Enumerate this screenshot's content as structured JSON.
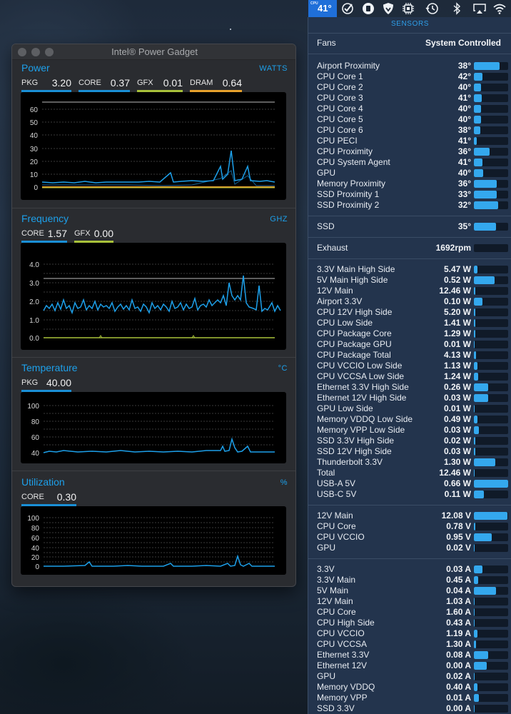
{
  "menubar": {
    "temp_status": "41°",
    "temp_status_small": "CPU",
    "icons": [
      "checkmark-circle-icon",
      "stop-circle-icon",
      "shield-icon",
      "cpu-chip-icon",
      "time-machine-icon",
      "bluetooth-icon",
      "airplay-icon",
      "wifi-icon"
    ]
  },
  "gadget": {
    "title": "Intel® Power Gadget",
    "power": {
      "title": "Power",
      "unit": "WATTS",
      "metrics": [
        {
          "label": "PKG",
          "value": "3.20",
          "color": "#1a8fd6"
        },
        {
          "label": "CORE",
          "value": "0.37",
          "color": "#1a8fd6"
        },
        {
          "label": "GFX",
          "value": "0.01",
          "color": "#a8c13a"
        },
        {
          "label": "DRAM",
          "value": "0.64",
          "color": "#e7a12c"
        }
      ],
      "yticks": [
        "60",
        "50",
        "40",
        "30",
        "20",
        "10",
        "0"
      ]
    },
    "frequency": {
      "title": "Frequency",
      "unit": "GHZ",
      "metrics": [
        {
          "label": "CORE",
          "value": "1.57",
          "color": "#1a8fd6"
        },
        {
          "label": "GFX",
          "value": "0.00",
          "color": "#a8c13a"
        }
      ],
      "yticks": [
        "4.0",
        "3.0",
        "2.0",
        "1.0",
        "0.0"
      ]
    },
    "temperature": {
      "title": "Temperature",
      "unit": "°C",
      "metrics": [
        {
          "label": "PKG",
          "value": "40.00",
          "color": "#1a8fd6"
        }
      ],
      "yticks": [
        "100",
        "80",
        "60",
        "40"
      ]
    },
    "utilization": {
      "title": "Utilization",
      "unit": "%",
      "metrics": [
        {
          "label": "CORE",
          "value": "0.30",
          "color": "#1a8fd6"
        }
      ],
      "yticks": [
        "100",
        "80",
        "60",
        "40",
        "20",
        "0"
      ]
    }
  },
  "sensors": {
    "header": "SENSORS",
    "fans": {
      "label": "Fans",
      "value": "System Controlled"
    },
    "groups": [
      {
        "rows": [
          {
            "name": "Airport Proximity",
            "value": "38°",
            "fill": 0.75
          },
          {
            "name": "CPU Core 1",
            "value": "42°",
            "fill": 0.25
          },
          {
            "name": "CPU Core 2",
            "value": "40°",
            "fill": 0.2
          },
          {
            "name": "CPU Core 3",
            "value": "41°",
            "fill": 0.22
          },
          {
            "name": "CPU Core 4",
            "value": "40°",
            "fill": 0.2
          },
          {
            "name": "CPU Core 5",
            "value": "40°",
            "fill": 0.2
          },
          {
            "name": "CPU Core 6",
            "value": "38°",
            "fill": 0.18
          },
          {
            "name": "CPU PECI",
            "value": "41°",
            "fill": 0.08
          },
          {
            "name": "CPU Proximity",
            "value": "36°",
            "fill": 0.46
          },
          {
            "name": "CPU System Agent",
            "value": "41°",
            "fill": 0.25
          },
          {
            "name": "GPU",
            "value": "40°",
            "fill": 0.28
          },
          {
            "name": "Memory Proximity",
            "value": "36°",
            "fill": 0.67
          },
          {
            "name": "SSD Proximity 1",
            "value": "33°",
            "fill": 0.67
          },
          {
            "name": "SSD Proximity 2",
            "value": "32°",
            "fill": 0.7
          }
        ]
      },
      {
        "rows": [
          {
            "name": "SSD",
            "value": "35°",
            "fill": 0.64
          }
        ]
      },
      {
        "rows": [
          {
            "name": "Exhaust",
            "value": "1692rpm",
            "fill": 0
          }
        ]
      },
      {
        "rows": [
          {
            "name": "3.3V Main High Side",
            "value": "5.47 W",
            "fill": 0.1
          },
          {
            "name": "5V Main High Side",
            "value": "0.52 W",
            "fill": 0.6
          },
          {
            "name": "12V Main",
            "value": "12.46 W",
            "fill": 0.04
          },
          {
            "name": "Airport 3.3V",
            "value": "0.10 W",
            "fill": 0.25
          },
          {
            "name": "CPU 12V High Side",
            "value": "5.20 W",
            "fill": 0.04
          },
          {
            "name": "CPU Low Side",
            "value": "1.41 W",
            "fill": 0.04
          },
          {
            "name": "CPU Package Core",
            "value": "1.29 W",
            "fill": 0.04
          },
          {
            "name": "CPU Package GPU",
            "value": "0.01 W",
            "fill": 0.02
          },
          {
            "name": "CPU Package Total",
            "value": "4.13 W",
            "fill": 0.06
          },
          {
            "name": "CPU VCCIO Low Side",
            "value": "1.13 W",
            "fill": 0.1
          },
          {
            "name": "CPU VCCSA Low Side",
            "value": "1.24 W",
            "fill": 0.12
          },
          {
            "name": "Ethernet 3.3V High Side",
            "value": "0.26 W",
            "fill": 0.42
          },
          {
            "name": "Ethernet 12V High Side",
            "value": "0.03 W",
            "fill": 0.42
          },
          {
            "name": "GPU Low Side",
            "value": "0.01 W",
            "fill": 0.02
          },
          {
            "name": "Memory VDDQ Low Side",
            "value": "0.49 W",
            "fill": 0.1
          },
          {
            "name": "Memory VPP Low Side",
            "value": "0.03 W",
            "fill": 0.14
          },
          {
            "name": "SSD 3.3V High Side",
            "value": "0.02 W",
            "fill": 0.04
          },
          {
            "name": "SSD 12V High Side",
            "value": "0.03 W",
            "fill": 0.04
          },
          {
            "name": "Thunderbolt 3.3V",
            "value": "1.30 W",
            "fill": 0.62
          },
          {
            "name": "Total",
            "value": "12.46 W",
            "fill": 0.02
          },
          {
            "name": "USB-A 5V",
            "value": "0.66 W",
            "fill": 1.0
          },
          {
            "name": "USB-C 5V",
            "value": "0.11 W",
            "fill": 0.3
          }
        ]
      },
      {
        "rows": [
          {
            "name": "12V Main",
            "value": "12.08 V",
            "fill": 0.97
          },
          {
            "name": "CPU Core",
            "value": "0.78 V",
            "fill": 0.04
          },
          {
            "name": "CPU VCCIO",
            "value": "0.95 V",
            "fill": 0.52
          },
          {
            "name": "GPU",
            "value": "0.02 V",
            "fill": 0.02
          }
        ]
      },
      {
        "rows": [
          {
            "name": "3.3V",
            "value": "0.03 A",
            "fill": 0.25
          },
          {
            "name": "3.3V Main",
            "value": "0.45 A",
            "fill": 0.12
          },
          {
            "name": "5V Main",
            "value": "0.04 A",
            "fill": 0.64
          },
          {
            "name": "12V Main",
            "value": "1.03 A",
            "fill": 0.02
          },
          {
            "name": "CPU Core",
            "value": "1.60 A",
            "fill": 0.02
          },
          {
            "name": "CPU High Side",
            "value": "0.43 A",
            "fill": 0.02
          },
          {
            "name": "CPU VCCIO",
            "value": "1.19 A",
            "fill": 0.1
          },
          {
            "name": "CPU VCCSA",
            "value": "1.30 A",
            "fill": 0.06
          },
          {
            "name": "Ethernet 3.3V",
            "value": "0.08 A",
            "fill": 0.42
          },
          {
            "name": "Ethernet 12V",
            "value": "0.00 A",
            "fill": 0.38
          },
          {
            "name": "GPU",
            "value": "0.02 A",
            "fill": 0.02
          },
          {
            "name": "Memory VDDQ",
            "value": "0.40 A",
            "fill": 0.1
          },
          {
            "name": "Memory VPP",
            "value": "0.01 A",
            "fill": 0.14
          },
          {
            "name": "SSD 3.3V",
            "value": "0.00 A",
            "fill": 0.02
          }
        ]
      }
    ]
  }
}
